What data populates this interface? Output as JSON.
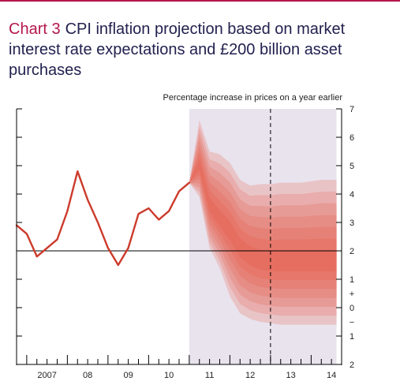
{
  "header": {
    "chart_number": "Chart 3",
    "title": "CPI inflation projection based on market interest rate expectations and £200 billion asset purchases"
  },
  "colors": {
    "accent": "#b5174b",
    "title_text": "#22214f",
    "line": "#cc3b2c",
    "fan_base": "#e6553f",
    "projection_shade": "#e9e3ee",
    "target_line": "#000000"
  },
  "chart_data": {
    "type": "line",
    "ylabel": "Percentage increase in prices on a year earlier",
    "ylim": [
      -2,
      7
    ],
    "xlim": [
      2006.75,
      2014.75
    ],
    "y_ticks": [
      "2",
      "1",
      "−",
      "0",
      "+",
      "1",
      "2",
      "3",
      "4",
      "5",
      "6",
      "7"
    ],
    "x_ticks": [
      {
        "label": "2007",
        "x": 2007.5
      },
      {
        "label": "08",
        "x": 2008.5
      },
      {
        "label": "09",
        "x": 2009.5
      },
      {
        "label": "10",
        "x": 2010.5
      },
      {
        "label": "11",
        "x": 2011.5
      },
      {
        "label": "12",
        "x": 2012.5
      },
      {
        "label": "13",
        "x": 2013.5
      },
      {
        "label": "14",
        "x": 2014.5
      }
    ],
    "inflation_target": 2,
    "projection_start": 2011.0,
    "two_year_marker": 2013.0,
    "projection_end": 2014.625,
    "series": [
      {
        "values": [
          {
            "x": 2006.75,
            "y": 2.9
          },
          {
            "x": 2007.0,
            "y": 2.6
          },
          {
            "x": 2007.25,
            "y": 1.8
          },
          {
            "x": 2007.5,
            "y": 2.1
          },
          {
            "x": 2007.75,
            "y": 2.4
          },
          {
            "x": 2008.0,
            "y": 3.4
          },
          {
            "x": 2008.25,
            "y": 4.8
          },
          {
            "x": 2008.5,
            "y": 3.8
          },
          {
            "x": 2008.75,
            "y": 3.0
          },
          {
            "x": 2009.0,
            "y": 2.1
          },
          {
            "x": 2009.25,
            "y": 1.5
          },
          {
            "x": 2009.5,
            "y": 2.1
          },
          {
            "x": 2009.75,
            "y": 3.3
          },
          {
            "x": 2010.0,
            "y": 3.5
          },
          {
            "x": 2010.25,
            "y": 3.1
          },
          {
            "x": 2010.5,
            "y": 3.4
          },
          {
            "x": 2010.75,
            "y": 4.1
          },
          {
            "x": 2011.0,
            "y": 4.4
          }
        ]
      }
    ],
    "fan": {
      "x": [
        2011.0,
        2011.25,
        2011.5,
        2011.75,
        2012.0,
        2012.25,
        2012.5,
        2012.75,
        2013.0,
        2013.25,
        2013.5,
        2013.75,
        2014.0,
        2014.25,
        2014.5,
        2014.625
      ],
      "median": [
        4.4,
        5.0,
        3.6,
        3.1,
        2.7,
        2.1,
        1.8,
        1.65,
        1.6,
        1.6,
        1.6,
        1.6,
        1.6,
        1.6,
        1.6,
        1.6
      ],
      "upper": [
        4.4,
        6.6,
        5.5,
        5.4,
        5.1,
        4.5,
        4.3,
        4.35,
        4.35,
        4.4,
        4.4,
        4.4,
        4.45,
        4.5,
        4.5,
        4.5
      ],
      "lower": [
        4.4,
        3.9,
        2.1,
        1.4,
        0.4,
        -0.2,
        -0.4,
        -0.5,
        -0.55,
        -0.6,
        -0.6,
        -0.6,
        -0.6,
        -0.6,
        -0.6,
        -0.6
      ]
    }
  }
}
